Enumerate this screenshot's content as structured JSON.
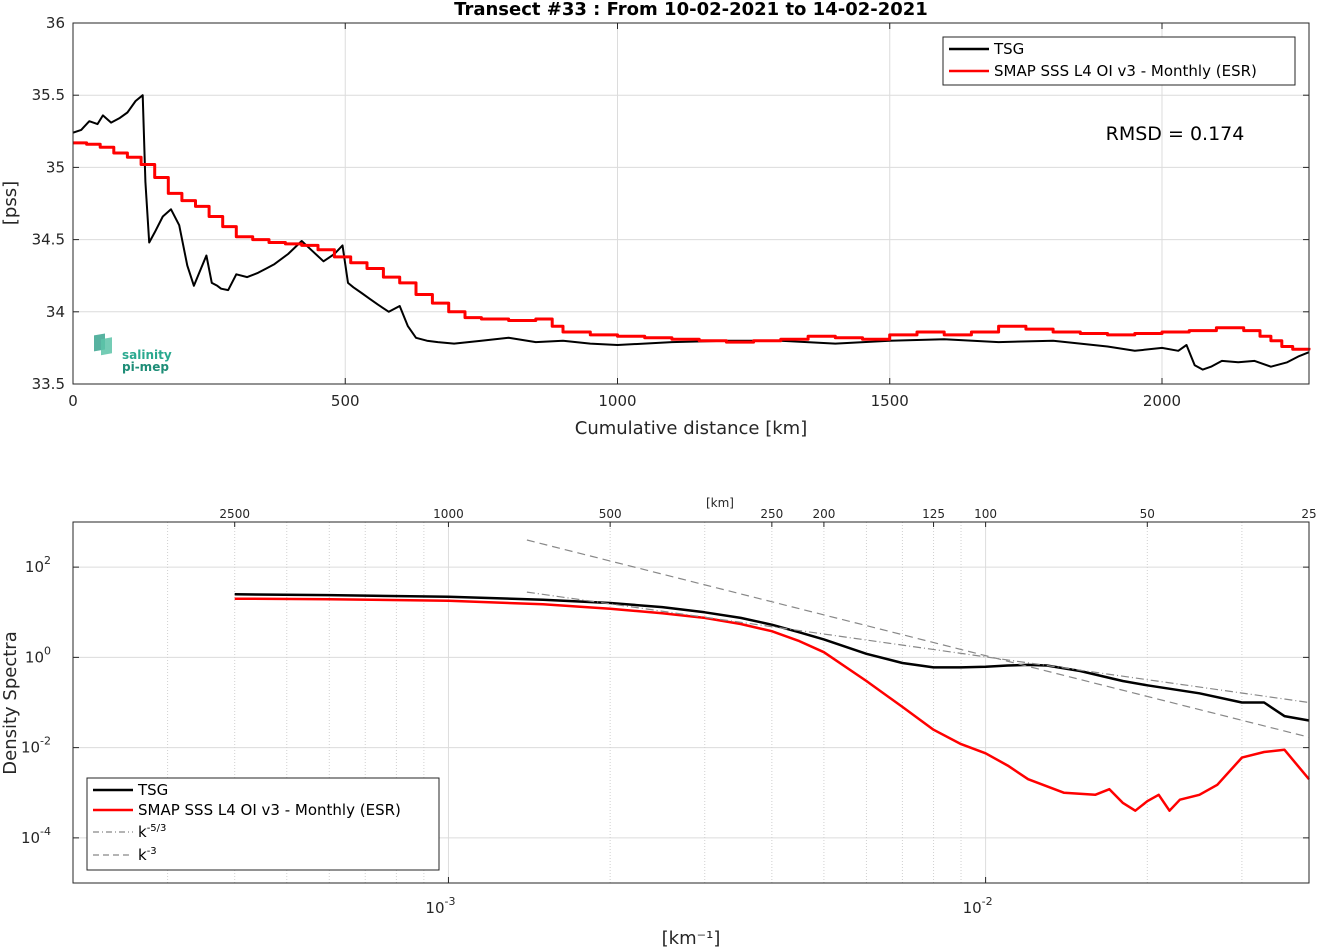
{
  "chart_data": [
    {
      "type": "line",
      "title": "Transect #33 : From 10-02-2021 to 14-02-2021",
      "xlabel": "Cumulative distance [km]",
      "ylabel": "[pss]",
      "xlim": [
        0,
        2270
      ],
      "ylim": [
        33.5,
        36
      ],
      "xticks": [
        0,
        500,
        1000,
        1500,
        2000
      ],
      "yticks": [
        33.5,
        34,
        34.5,
        35,
        35.5,
        36
      ],
      "grid": true,
      "legend_position": "top-right",
      "annotation": "RMSD = 0.174",
      "logo": "salinity pi-mep",
      "series": [
        {
          "name": "TSG",
          "color": "#000000",
          "x": [
            0,
            15,
            30,
            45,
            55,
            70,
            85,
            100,
            115,
            128,
            133,
            140,
            150,
            165,
            180,
            195,
            210,
            222,
            235,
            245,
            255,
            265,
            272,
            285,
            300,
            320,
            340,
            355,
            370,
            395,
            420,
            440,
            460,
            480,
            495,
            505,
            515,
            530,
            545,
            560,
            580,
            600,
            615,
            630,
            650,
            670,
            700,
            750,
            800,
            850,
            900,
            950,
            1000,
            1100,
            1200,
            1300,
            1400,
            1500,
            1600,
            1700,
            1800,
            1900,
            1950,
            2000,
            2030,
            2045,
            2060,
            2075,
            2090,
            2110,
            2140,
            2170,
            2200,
            2230,
            2250,
            2270
          ],
          "y": [
            35.24,
            35.26,
            35.32,
            35.3,
            35.36,
            35.31,
            35.34,
            35.38,
            35.46,
            35.5,
            34.9,
            34.48,
            34.55,
            34.66,
            34.71,
            34.6,
            34.32,
            34.18,
            34.3,
            34.39,
            34.2,
            34.18,
            34.16,
            34.15,
            34.26,
            34.24,
            34.27,
            34.3,
            34.33,
            34.4,
            34.49,
            34.42,
            34.35,
            34.4,
            34.46,
            34.2,
            34.17,
            34.13,
            34.09,
            34.05,
            34.0,
            34.04,
            33.9,
            33.82,
            33.8,
            33.79,
            33.78,
            33.8,
            33.82,
            33.79,
            33.8,
            33.78,
            33.77,
            33.79,
            33.8,
            33.8,
            33.78,
            33.8,
            33.81,
            33.79,
            33.8,
            33.76,
            33.73,
            33.75,
            33.73,
            33.77,
            33.63,
            33.6,
            33.62,
            33.66,
            33.65,
            33.66,
            33.62,
            33.65,
            33.69,
            33.72
          ]
        },
        {
          "name": "SMAP SSS L4 OI v3 - Monthly (ESR)",
          "color": "#ff0000",
          "step": true,
          "x": [
            0,
            25,
            50,
            75,
            100,
            125,
            150,
            175,
            200,
            225,
            250,
            275,
            300,
            330,
            360,
            390,
            420,
            450,
            480,
            510,
            540,
            570,
            600,
            630,
            660,
            690,
            720,
            750,
            800,
            850,
            880,
            900,
            950,
            1000,
            1050,
            1100,
            1150,
            1200,
            1250,
            1300,
            1350,
            1400,
            1450,
            1500,
            1550,
            1600,
            1650,
            1700,
            1750,
            1800,
            1850,
            1900,
            1950,
            2000,
            2050,
            2100,
            2150,
            2180,
            2200,
            2220,
            2240,
            2270
          ],
          "y": [
            35.17,
            35.16,
            35.14,
            35.1,
            35.07,
            35.02,
            34.93,
            34.82,
            34.77,
            34.73,
            34.66,
            34.59,
            34.52,
            34.5,
            34.48,
            34.47,
            34.46,
            34.43,
            34.38,
            34.34,
            34.3,
            34.24,
            34.2,
            34.12,
            34.06,
            34.0,
            33.96,
            33.95,
            33.94,
            33.95,
            33.9,
            33.86,
            33.84,
            33.83,
            33.82,
            33.81,
            33.8,
            33.79,
            33.8,
            33.81,
            33.83,
            33.82,
            33.81,
            33.84,
            33.86,
            33.84,
            33.86,
            33.9,
            33.88,
            33.86,
            33.85,
            33.84,
            33.85,
            33.86,
            33.87,
            33.89,
            33.87,
            33.83,
            33.8,
            33.76,
            33.74,
            33.75
          ]
        }
      ]
    },
    {
      "type": "line",
      "xscale": "log",
      "yscale": "log",
      "xlabel": "[km⁻¹]",
      "ylabel": "Density Spectra",
      "xlim": [
        0.0002,
        0.04
      ],
      "ylim": [
        1e-05,
        1000
      ],
      "xticks_labels": [
        "10",
        "10"
      ],
      "xticks_exponents": [
        "-3",
        "-2"
      ],
      "yticks_labels": [
        "10",
        "10",
        "10",
        "10"
      ],
      "yticks_exponents": [
        "2",
        "0",
        "-2",
        "-4"
      ],
      "top_axis_label": "[km]",
      "top_ticks": [
        "2500",
        "1000",
        "500",
        "250",
        "200",
        "125",
        "100",
        "50",
        "25"
      ],
      "grid": true,
      "legend_position": "bottom-left",
      "series": [
        {
          "name": "TSG",
          "color": "#000000",
          "x": [
            0.0004,
            0.0006,
            0.001,
            0.0015,
            0.002,
            0.0025,
            0.003,
            0.0035,
            0.004,
            0.0045,
            0.005,
            0.006,
            0.007,
            0.008,
            0.009,
            0.01,
            0.011,
            0.012,
            0.013,
            0.015,
            0.018,
            0.02,
            0.025,
            0.03,
            0.033,
            0.036,
            0.04
          ],
          "y": [
            25,
            24,
            22,
            19,
            16,
            13,
            10,
            7.5,
            5.3,
            3.6,
            2.5,
            1.2,
            0.75,
            0.6,
            0.6,
            0.62,
            0.66,
            0.68,
            0.66,
            0.5,
            0.3,
            0.24,
            0.16,
            0.1,
            0.1,
            0.05,
            0.04
          ]
        },
        {
          "name": "SMAP SSS L4 OI v3 - Monthly (ESR)",
          "color": "#ff0000",
          "x": [
            0.0004,
            0.0006,
            0.001,
            0.0015,
            0.002,
            0.0025,
            0.003,
            0.0035,
            0.004,
            0.0045,
            0.005,
            0.006,
            0.007,
            0.008,
            0.009,
            0.01,
            0.011,
            0.012,
            0.014,
            0.016,
            0.017,
            0.018,
            0.019,
            0.02,
            0.021,
            0.022,
            0.023,
            0.025,
            0.027,
            0.03,
            0.033,
            0.036,
            0.04
          ],
          "y": [
            20,
            19.5,
            18,
            15,
            12,
            9.5,
            7.5,
            5.5,
            3.8,
            2.3,
            1.3,
            0.3,
            0.08,
            0.025,
            0.012,
            0.0075,
            0.004,
            0.002,
            0.001,
            0.0009,
            0.0012,
            0.0006,
            0.0004,
            0.00065,
            0.0009,
            0.0004,
            0.0007,
            0.0009,
            0.0015,
            0.006,
            0.008,
            0.009,
            0.002
          ]
        },
        {
          "name": "k^-5/3",
          "color": "#888888",
          "dash": "dashdot",
          "x": [
            0.0014,
            0.04
          ],
          "y": [
            28,
            0.1
          ]
        },
        {
          "name": "k^-3",
          "color": "#888888",
          "dash": "dashed",
          "x": [
            0.0014,
            0.04
          ],
          "y": [
            400,
            0.017
          ]
        }
      ]
    }
  ]
}
